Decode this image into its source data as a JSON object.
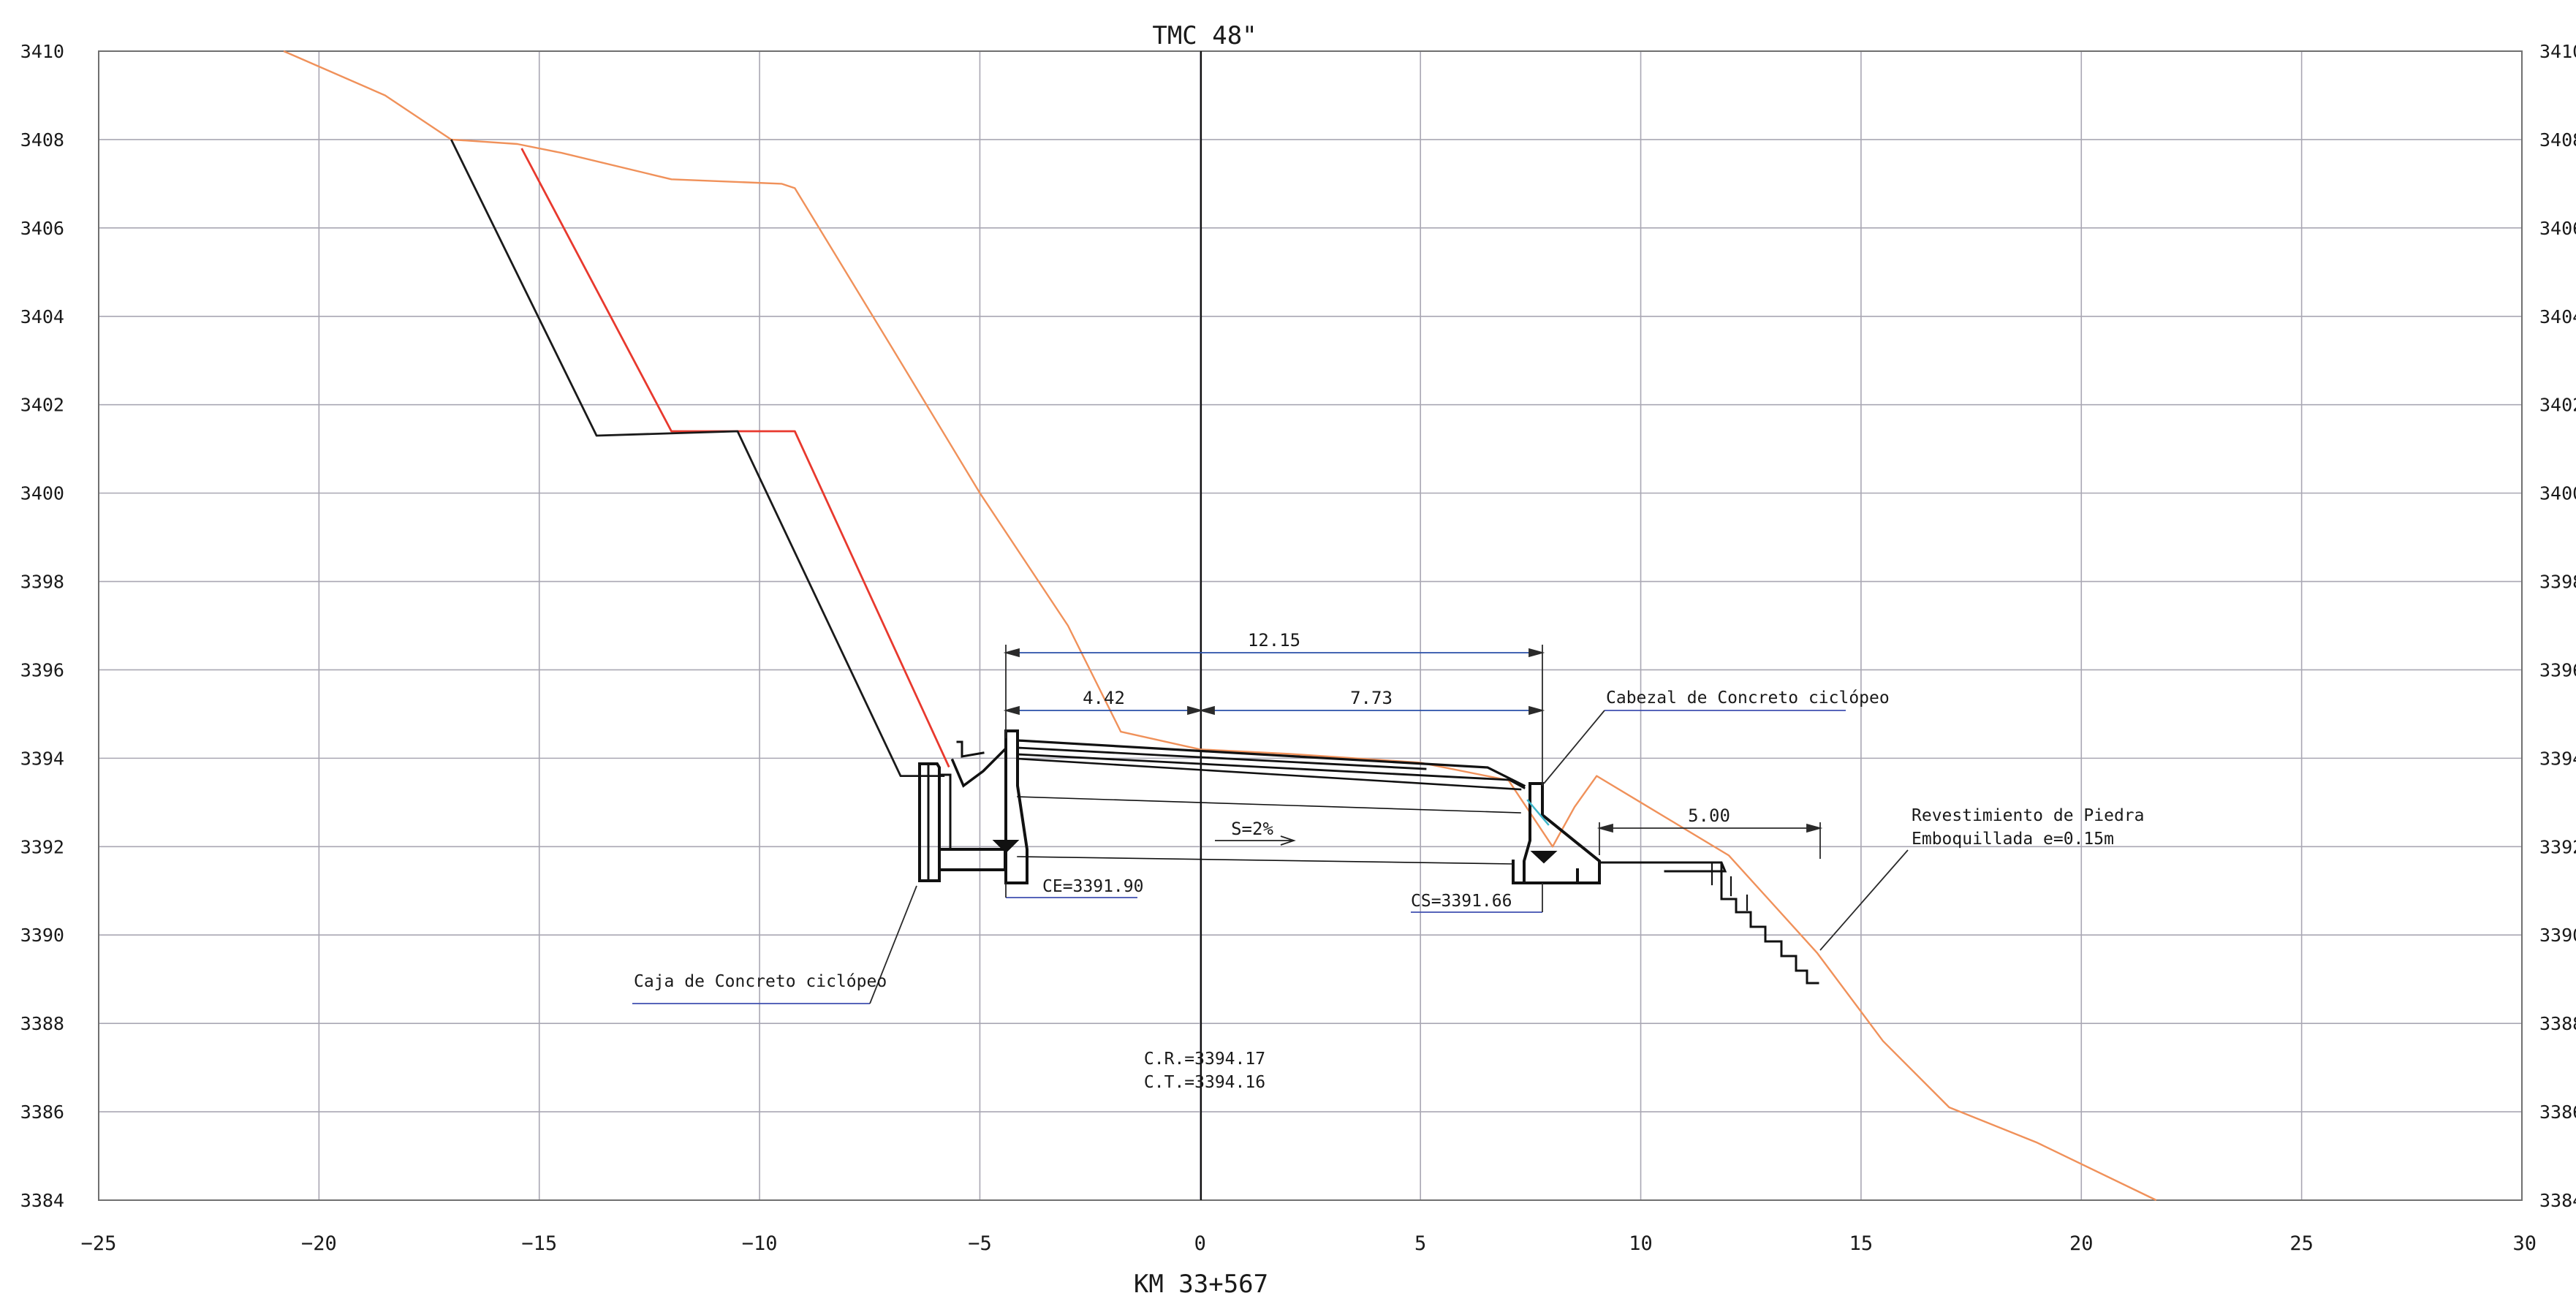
{
  "title": "TMC 48\"",
  "station": "KM 33+567",
  "axes": {
    "x_ticks": [
      "−25",
      "−20",
      "−15",
      "−10",
      "−5",
      "0",
      "5",
      "10",
      "15",
      "20",
      "25",
      "30"
    ],
    "y_ticks_left": [
      "3410",
      "3408",
      "3406",
      "3404",
      "3402",
      "3400",
      "3398",
      "3396",
      "3394",
      "3392",
      "3390",
      "3388",
      "3386",
      "3384"
    ],
    "y_ticks_right": [
      "3410",
      "3408",
      "3406",
      "3404",
      "3402",
      "3400",
      "3398",
      "3396",
      "3394",
      "3392",
      "3390",
      "3388",
      "3386",
      "3384"
    ],
    "xlim": [
      -25,
      30
    ],
    "ylim": [
      3384,
      3410
    ],
    "grid": true
  },
  "colors": {
    "terrain": "#f0915a",
    "red_profile": "#e8392e",
    "black_profile": "#1a1a1a",
    "structure": "#111111",
    "leader_underline": "#3f4fb0",
    "grid": "#a9a7b3"
  },
  "dimensions": {
    "total": "12.15",
    "left": "4.42",
    "right": "7.73",
    "riprap": "5.00",
    "slope": "S=2%"
  },
  "labels": {
    "ce": "CE=3391.90",
    "cs": "CS=3391.66",
    "cr": "C.R.=3394.17",
    "ct": "C.T.=3394.16",
    "cabezal": "Cabezal de Concreto ciclópeo",
    "caja": "Caja de Concreto ciclópeo",
    "revest_line1": "Revestimiento  de Piedra",
    "revest_line2": "Emboquillada  e=0.15m"
  },
  "chart_data": {
    "type": "line",
    "xlabel": "",
    "ylabel": "",
    "xlim": [
      -25,
      30
    ],
    "ylim": [
      3384,
      3410
    ],
    "series": [
      {
        "x": [
          -20.8,
          -18.5,
          -17.0,
          -15.5,
          -14.5,
          -12.0,
          -9.5,
          -9.2,
          -7.0,
          -5.0,
          -3.0,
          -1.8,
          0.0,
          2.0,
          5.0,
          7.0,
          8.0,
          8.5,
          9.0,
          10.0,
          12.0,
          14.0,
          15.5,
          17.0,
          19.0,
          21.7
        ],
        "y": [
          3410.0,
          3409.0,
          3408.0,
          3407.9,
          3407.7,
          3407.1,
          3407.0,
          3406.9,
          3403.3,
          3400.0,
          3397.0,
          3394.6,
          3394.2,
          3394.1,
          3393.9,
          3393.5,
          3392.0,
          3392.9,
          3393.6,
          3393.0,
          3391.8,
          3389.6,
          3387.6,
          3386.1,
          3385.3,
          3384.0
        ]
      },
      {
        "x": [
          -15.4,
          -12.0,
          -9.2,
          -5.7
        ],
        "y": [
          3407.8,
          3401.4,
          3401.4,
          3393.8
        ]
      },
      {
        "x": [
          -17.0,
          -13.7,
          -10.5,
          -6.8,
          -5.8
        ],
        "y": [
          3408.0,
          3401.3,
          3401.4,
          3393.6,
          3393.6
        ]
      }
    ]
  }
}
